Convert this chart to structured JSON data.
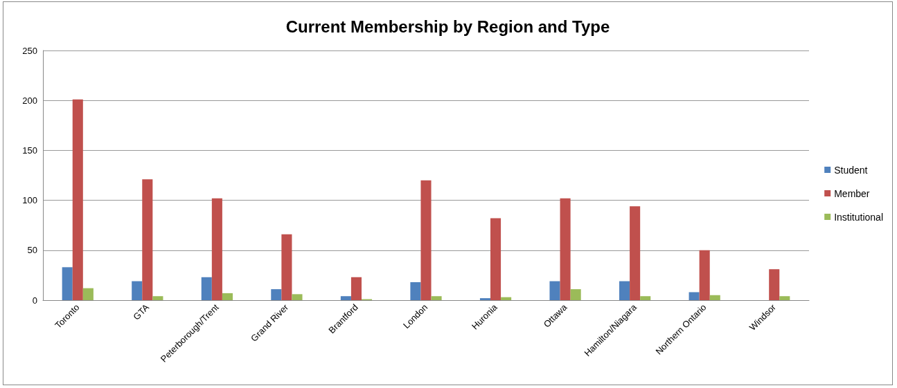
{
  "chart_data": {
    "type": "bar",
    "title": "Current Membership by Region and Type",
    "categories": [
      "Toronto",
      "GTA",
      "Peterborough/Trent",
      "Grand River",
      "Brantford",
      "London",
      "Huronia",
      "Ottawa",
      "Hamilton/Niagara",
      "Northern Ontario",
      "Windsor"
    ],
    "series": [
      {
        "name": "Student",
        "color": "#4f81bd",
        "values": [
          33,
          19,
          23,
          11,
          4,
          18,
          2,
          19,
          19,
          8,
          0
        ]
      },
      {
        "name": "Member",
        "color": "#c0504d",
        "values": [
          201,
          121,
          102,
          66,
          23,
          120,
          82,
          102,
          94,
          50,
          31
        ]
      },
      {
        "name": "Institutional",
        "color": "#9bbb59",
        "values": [
          12,
          4,
          7,
          6,
          1,
          4,
          3,
          11,
          4,
          5,
          4
        ]
      }
    ],
    "ylim": [
      0,
      250
    ],
    "yticks": [
      0,
      50,
      100,
      150,
      200,
      250
    ],
    "grid": "y",
    "legend": "right"
  }
}
